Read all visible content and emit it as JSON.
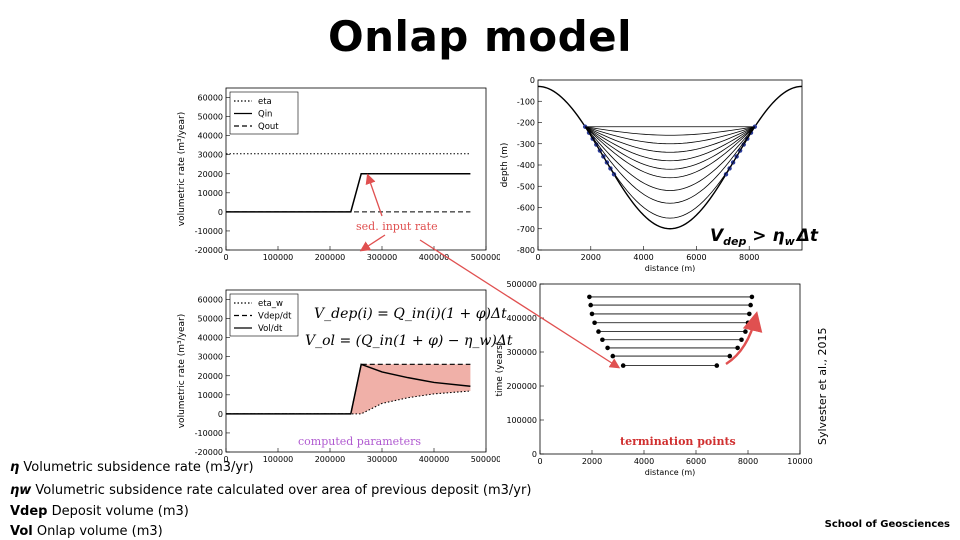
{
  "slide": {
    "title": "Onlap model",
    "citation": "Sylvester et al., 2015",
    "footer": "School of Geosciences"
  },
  "definitions": [
    {
      "symbol": "η",
      "text": "Volumetric subsidence rate (m3/yr)"
    },
    {
      "symbol": "ηw",
      "text": "Volumetric subsidence rate calculated over area of previous deposit (m3/yr)"
    },
    {
      "symbol": "Vdep",
      "text": "Deposit volume (m3)"
    },
    {
      "symbol": "Vol",
      "text": "Onlap volume (m3)"
    }
  ],
  "annotations": {
    "sed_input": "sed. input rate",
    "computed": "computed parameters",
    "termination": "termination points",
    "formula_tr": "V",
    "formula_tr_sub": "dep",
    "formula_tr_rest": " > η",
    "formula_tr_sub2": "w",
    "formula_tr_end": "Δt",
    "eq1": "V_dep(i) = Q_in(i)(1 + φ)Δt",
    "eq2": "V_ol = (Q_in(1 + φ) − η_w)Δt"
  },
  "chart_data": [
    {
      "id": "input-rates",
      "type": "line",
      "ylabel": "volumetric rate (m³/year)",
      "xlabel": "",
      "xlim": [
        0,
        500000
      ],
      "ylim": [
        -20000,
        65000
      ],
      "xticks": [
        "0",
        "100000",
        "200000",
        "300000",
        "400000",
        "500000"
      ],
      "yticks": [
        "-20000",
        "-10000",
        "0",
        "10000",
        "20000",
        "30000",
        "40000",
        "50000",
        "60000"
      ],
      "legend": [
        "eta",
        "Qin",
        "Qout"
      ],
      "series": [
        {
          "name": "eta",
          "style": "dotted",
          "x": [
            0,
            470000
          ],
          "y": [
            30500,
            30500
          ]
        },
        {
          "name": "Qin",
          "style": "solid",
          "x": [
            0,
            240000,
            260000,
            470000
          ],
          "y": [
            0,
            0,
            20000,
            20000
          ]
        },
        {
          "name": "Qout",
          "style": "dashed",
          "x": [
            0,
            470000
          ],
          "y": [
            0,
            0
          ]
        }
      ]
    },
    {
      "id": "computed-parameters",
      "type": "line",
      "ylabel": "volumetric rate (m³/year)",
      "xlabel": "",
      "xlim": [
        0,
        500000
      ],
      "ylim": [
        -20000,
        65000
      ],
      "xticks": [
        "0",
        "100000",
        "200000",
        "300000",
        "400000",
        "500000"
      ],
      "yticks": [
        "-20000",
        "-10000",
        "0",
        "10000",
        "20000",
        "30000",
        "40000",
        "50000",
        "60000"
      ],
      "legend": [
        "eta_w",
        "Vdep/dt",
        "Vol/dt"
      ],
      "series": [
        {
          "name": "eta_w",
          "style": "dotted",
          "x": [
            0,
            240000,
            260000,
            300000,
            350000,
            400000,
            470000
          ],
          "y": [
            0,
            0,
            0,
            5500,
            8500,
            10500,
            12000
          ]
        },
        {
          "name": "Vdep/dt",
          "style": "dashed",
          "x": [
            0,
            240000,
            260000,
            470000
          ],
          "y": [
            0,
            0,
            26000,
            26000
          ]
        },
        {
          "name": "Vol/dt",
          "style": "solid",
          "x": [
            0,
            240000,
            260000,
            300000,
            350000,
            400000,
            470000
          ],
          "y": [
            0,
            0,
            26000,
            22000,
            19000,
            16500,
            14500
          ]
        }
      ]
    },
    {
      "id": "basin-profile",
      "type": "line",
      "ylabel": "depth (m)",
      "xlabel": "distance (m)",
      "xlim": [
        0,
        10000
      ],
      "ylim": [
        -800,
        0
      ],
      "xticks": [
        "0",
        "2000",
        "4000",
        "6000",
        "8000"
      ],
      "yticks": [
        "0",
        "-100",
        "-200",
        "-300",
        "-400",
        "-500",
        "-600",
        "-700",
        "-800"
      ],
      "basin_depth": 700,
      "basin_min": 30,
      "basin_center": 5000,
      "surfaces_depth": [
        220,
        260,
        300,
        340,
        380,
        420,
        460,
        520,
        580,
        650
      ]
    },
    {
      "id": "termination-points",
      "type": "scatter",
      "ylabel": "time (years)",
      "xlabel": "distance (m)",
      "xlim": [
        0,
        10000
      ],
      "ylim": [
        0,
        500000
      ],
      "xticks": [
        "0",
        "2000",
        "4000",
        "6000",
        "8000",
        "10000"
      ],
      "yticks": [
        "0",
        "100000",
        "200000",
        "300000",
        "400000",
        "500000"
      ],
      "left_x": [
        3200,
        2800,
        2600,
        2400,
        2250,
        2100,
        2000,
        1950,
        1900
      ],
      "right_x": [
        6800,
        7300,
        7600,
        7750,
        7900,
        8000,
        8050,
        8100,
        8150
      ],
      "times": [
        260000,
        288000,
        312000,
        336000,
        360000,
        386000,
        412000,
        438000,
        462000
      ]
    }
  ]
}
